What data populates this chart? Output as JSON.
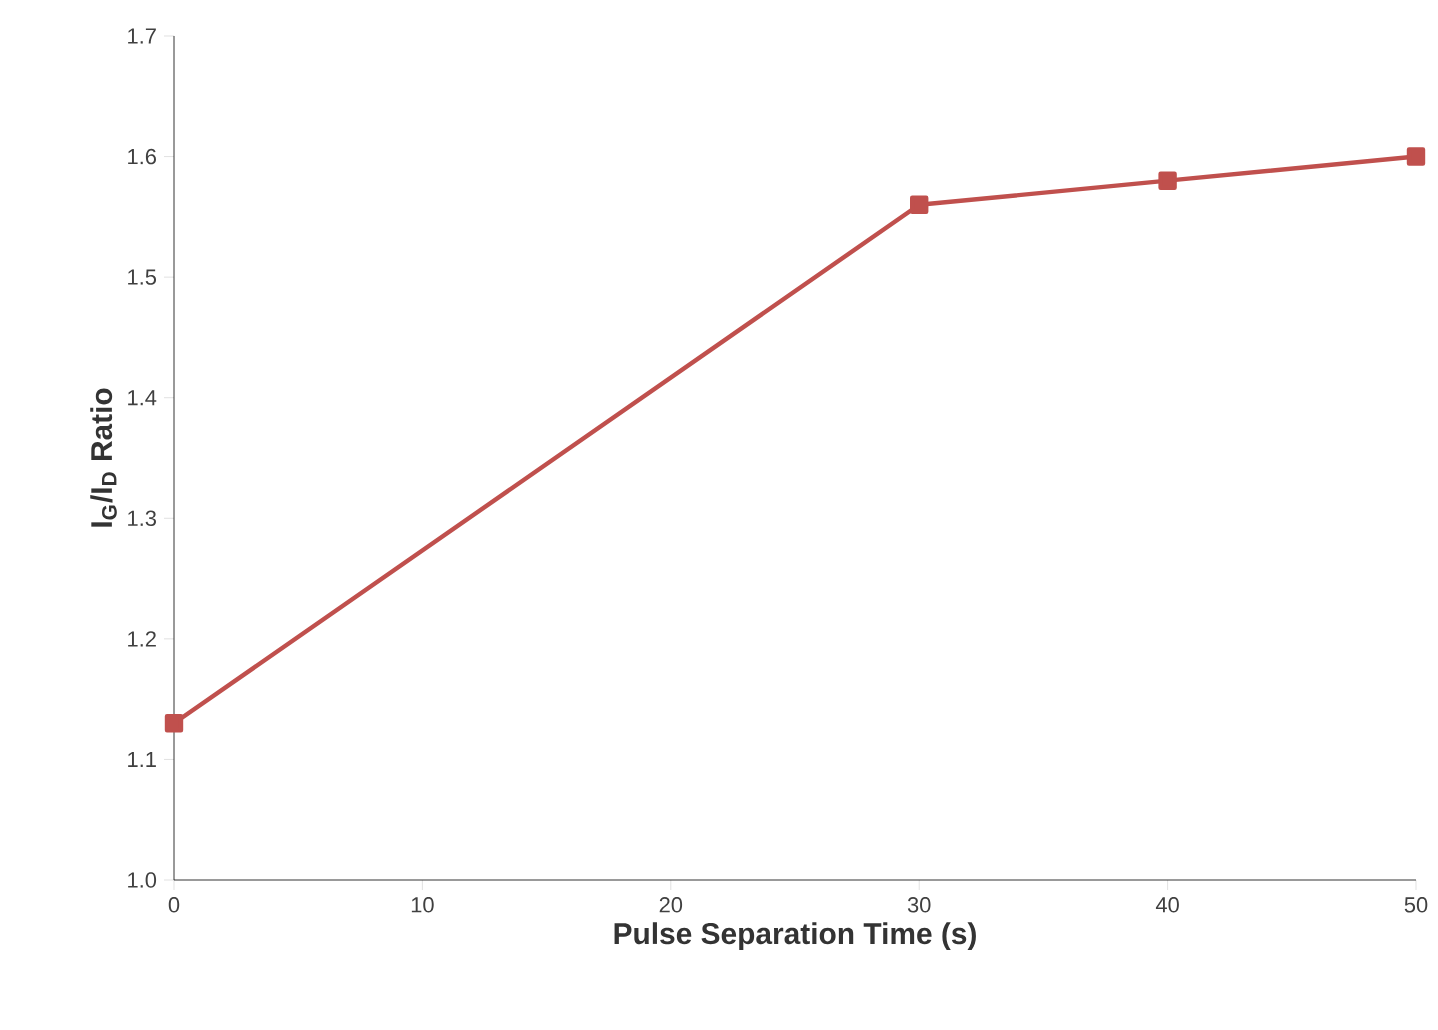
{
  "chart_data": {
    "type": "line",
    "xlabel": "Pulse Separation Time (s)",
    "ylabel": "I$_{G}$/I$_{D}$ Ratio",
    "x": [
      0,
      30,
      40,
      50
    ],
    "series": [
      {
        "color": "#c0504d",
        "values": [
          1.13,
          1.56,
          1.58,
          1.6
        ]
      }
    ],
    "xlim": [
      0,
      50
    ],
    "ylim": [
      1.0,
      1.7
    ],
    "xticks": [
      0,
      10,
      20,
      30,
      40,
      50
    ],
    "yticks": [
      {
        "value": 1,
        "label": "1.0"
      },
      1.1,
      1.2,
      1.3,
      1.4,
      1.5,
      1.6,
      1.7
    ],
    "marker": "square",
    "line_style": "solid"
  }
}
